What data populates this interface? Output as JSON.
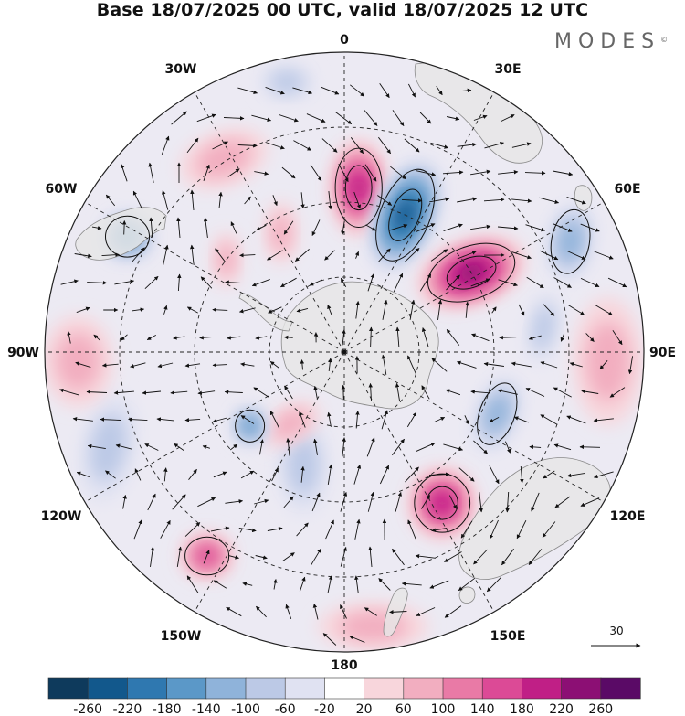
{
  "title": "Base 18/07/2025 00 UTC, valid 18/07/2025 12 UTC",
  "brand": {
    "name": "MODES",
    "mark": "©"
  },
  "map": {
    "projection": "south-polar-stereographic",
    "boundary": "circular",
    "longitude_labels": [
      {
        "text": "0",
        "lon": 0
      },
      {
        "text": "30E",
        "lon": 30
      },
      {
        "text": "60E",
        "lon": 60
      },
      {
        "text": "90E",
        "lon": 90
      },
      {
        "text": "120E",
        "lon": 120
      },
      {
        "text": "150E",
        "lon": 150
      },
      {
        "text": "180",
        "lon": 180
      },
      {
        "text": "150W",
        "lon": -150
      },
      {
        "text": "120W",
        "lon": -120
      },
      {
        "text": "90W",
        "lon": -90
      },
      {
        "text": "60W",
        "lon": -60
      },
      {
        "text": "30W",
        "lon": -30
      }
    ],
    "graticule": {
      "meridian_spacing_deg": 30,
      "parallels": 3,
      "style": "dashed"
    },
    "field_colors": {
      "land": "#e6e6e6",
      "coast": "#888888",
      "vectors": "#111111",
      "contours": "#111111"
    }
  },
  "vector_scale": {
    "value": "30"
  },
  "colorbar": {
    "ticks": [
      "-260",
      "-220",
      "-180",
      "-140",
      "-100",
      "-60",
      "-20",
      "20",
      "60",
      "100",
      "140",
      "180",
      "220",
      "260"
    ],
    "colors": [
      "#0e3a5c",
      "#12588c",
      "#2f78b0",
      "#5b98c8",
      "#8fb3da",
      "#bcc9e6",
      "#e0e2f2",
      "#ffffff",
      "#f8d6dc",
      "#f2aec0",
      "#e97aa6",
      "#dc4a96",
      "#c01f86",
      "#8c0f74",
      "#5a0a66"
    ]
  },
  "anomaly_features": [
    {
      "lon": 5,
      "rad": 0.55,
      "value": 200,
      "rx": 32,
      "ry": 54,
      "angle": 0
    },
    {
      "lon": 24,
      "rad": 0.5,
      "value": -240,
      "rx": 34,
      "ry": 66,
      "angle": 22
    },
    {
      "lon": 58,
      "rad": 0.5,
      "value": 220,
      "rx": 36,
      "ry": 62,
      "angle": 70
    },
    {
      "lon": 64,
      "rad": 0.84,
      "value": -100,
      "rx": 26,
      "ry": 44,
      "angle": 10
    },
    {
      "lon": 83,
      "rad": 0.67,
      "value": -80,
      "rx": 18,
      "ry": 40,
      "angle": 10
    },
    {
      "lon": 92,
      "rad": 0.88,
      "value": 80,
      "rx": 38,
      "ry": 70,
      "angle": 0
    },
    {
      "lon": 112,
      "rad": 0.55,
      "value": -120,
      "rx": 24,
      "ry": 44,
      "angle": 20
    },
    {
      "lon": 147,
      "rad": 0.6,
      "value": 200,
      "rx": 38,
      "ry": 40,
      "angle": 0
    },
    {
      "lon": 174,
      "rad": 0.92,
      "value": 60,
      "rx": 60,
      "ry": 26,
      "angle": 0
    },
    {
      "lon": -160,
      "rad": 0.4,
      "value": -60,
      "rx": 28,
      "ry": 54,
      "angle": 0
    },
    {
      "lon": -146,
      "rad": 0.82,
      "value": 140,
      "rx": 30,
      "ry": 26,
      "angle": 0
    },
    {
      "lon": -143,
      "rad": 0.3,
      "value": 60,
      "rx": 36,
      "ry": 20,
      "angle": -30
    },
    {
      "lon": -128,
      "rad": 0.4,
      "value": -140,
      "rx": 20,
      "ry": 22,
      "angle": 0
    },
    {
      "lon": -112,
      "rad": 0.85,
      "value": -60,
      "rx": 30,
      "ry": 60,
      "angle": 10
    },
    {
      "lon": -92,
      "rad": 0.89,
      "value": 80,
      "rx": 38,
      "ry": 50,
      "angle": 0
    },
    {
      "lon": -62,
      "rad": 0.82,
      "value": -140,
      "rx": 30,
      "ry": 28,
      "angle": 0
    },
    {
      "lon": -32,
      "rad": 0.76,
      "value": 60,
      "rx": 50,
      "ry": 30,
      "angle": -20
    },
    {
      "lon": -12,
      "rad": 0.92,
      "value": -60,
      "rx": 30,
      "ry": 20,
      "angle": 0
    },
    {
      "lon": -52,
      "rad": 0.5,
      "value": 60,
      "rx": 16,
      "ry": 30,
      "angle": 0
    },
    {
      "lon": -28,
      "rad": 0.45,
      "value": 60,
      "rx": 18,
      "ry": 34,
      "angle": 0
    }
  ]
}
